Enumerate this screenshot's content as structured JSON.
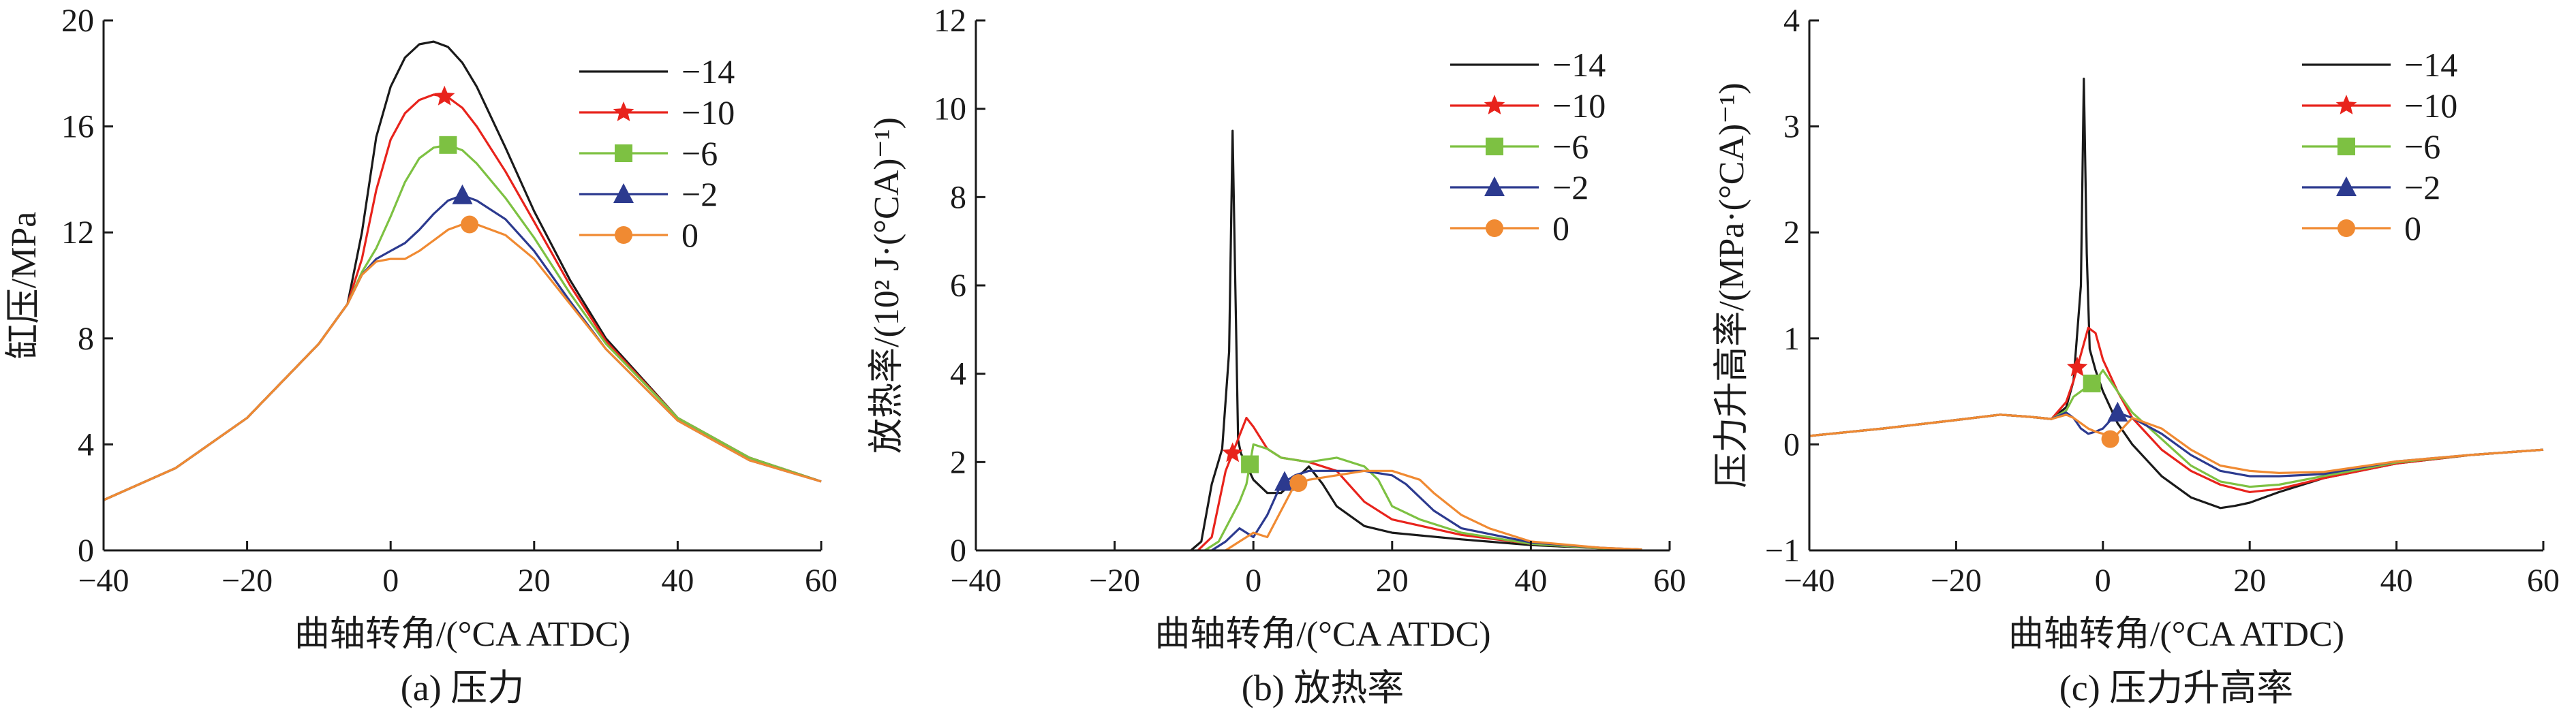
{
  "chart_data": [
    {
      "type": "line",
      "caption": "(a) 压力",
      "xlabel": "曲轴转角/(°CA ATDC)",
      "ylabel": "缸压/MPa",
      "xlim": [
        -40,
        60
      ],
      "ylim": [
        0,
        20
      ],
      "xticks": [
        -40,
        -20,
        0,
        20,
        40,
        60
      ],
      "yticks": [
        0,
        4,
        8,
        12,
        16,
        20
      ],
      "legend_position": "top-right",
      "series": [
        {
          "name": "−14",
          "color": "#1a1a1a",
          "marker": "none",
          "marker_x": null,
          "x": [
            -40,
            -30,
            -20,
            -10,
            -6,
            -4,
            -2,
            0,
            2,
            4,
            6,
            8,
            10,
            12,
            16,
            20,
            25,
            30,
            40,
            50,
            60
          ],
          "y": [
            1.9,
            3.1,
            5.0,
            7.8,
            9.3,
            12.0,
            15.6,
            17.5,
            18.6,
            19.1,
            19.2,
            19.0,
            18.4,
            17.5,
            15.2,
            12.8,
            10.2,
            8.0,
            5.0,
            3.5,
            2.6
          ]
        },
        {
          "name": "−10",
          "color": "#e8231c",
          "marker": "star",
          "marker_x": 7.5,
          "x": [
            -40,
            -30,
            -20,
            -10,
            -6,
            -4,
            -2,
            0,
            2,
            4,
            6,
            8,
            10,
            12,
            16,
            20,
            25,
            30,
            40,
            50,
            60
          ],
          "y": [
            1.9,
            3.1,
            5.0,
            7.8,
            9.3,
            11.0,
            13.6,
            15.5,
            16.5,
            17.0,
            17.2,
            17.1,
            16.7,
            16.0,
            14.3,
            12.4,
            10.0,
            7.9,
            5.0,
            3.5,
            2.6
          ]
        },
        {
          "name": "−6",
          "color": "#7dc142",
          "marker": "square",
          "marker_x": 8,
          "x": [
            -40,
            -30,
            -20,
            -10,
            -6,
            -4,
            -2,
            0,
            2,
            4,
            6,
            8,
            10,
            12,
            16,
            20,
            25,
            30,
            40,
            50,
            60
          ],
          "y": [
            1.9,
            3.1,
            5.0,
            7.8,
            9.3,
            10.5,
            11.4,
            12.6,
            13.9,
            14.8,
            15.2,
            15.3,
            15.1,
            14.6,
            13.3,
            11.8,
            9.7,
            7.8,
            5.0,
            3.5,
            2.6
          ]
        },
        {
          "name": "−2",
          "color": "#2c3a8f",
          "marker": "triangle",
          "marker_x": 10,
          "x": [
            -40,
            -30,
            -20,
            -10,
            -6,
            -4,
            -2,
            0,
            2,
            4,
            6,
            8,
            10,
            12,
            16,
            20,
            25,
            30,
            40,
            50,
            60
          ],
          "y": [
            1.9,
            3.1,
            5.0,
            7.8,
            9.3,
            10.4,
            11.0,
            11.3,
            11.6,
            12.1,
            12.7,
            13.2,
            13.4,
            13.2,
            12.5,
            11.3,
            9.4,
            7.6,
            4.9,
            3.4,
            2.6
          ]
        },
        {
          "name": "0",
          "color": "#f08a32",
          "marker": "circle",
          "marker_x": 11,
          "x": [
            -40,
            -30,
            -20,
            -10,
            -6,
            -4,
            -2,
            0,
            2,
            4,
            6,
            8,
            10,
            12,
            16,
            20,
            25,
            30,
            40,
            50,
            60
          ],
          "y": [
            1.9,
            3.1,
            5.0,
            7.8,
            9.3,
            10.4,
            10.9,
            11.0,
            11.0,
            11.3,
            11.7,
            12.1,
            12.3,
            12.3,
            11.9,
            11.0,
            9.3,
            7.6,
            4.9,
            3.4,
            2.6
          ]
        }
      ]
    },
    {
      "type": "line",
      "caption": "(b) 放热率",
      "xlabel": "曲轴转角/(°CA ATDC)",
      "ylabel": "放热率/(10² J·(°CA)⁻¹)",
      "xlim": [
        -40,
        60
      ],
      "ylim": [
        0,
        12
      ],
      "xticks": [
        -40,
        -20,
        0,
        20,
        40,
        60
      ],
      "yticks": [
        0,
        2,
        4,
        6,
        8,
        10,
        12
      ],
      "legend_position": "top-right",
      "series": [
        {
          "name": "−14",
          "color": "#1a1a1a",
          "marker": "none",
          "marker_x": null,
          "x": [
            -9,
            -7.5,
            -6,
            -4.5,
            -3.5,
            -3,
            -2.6,
            -2.2,
            -1.8,
            -1.2,
            0,
            2,
            4,
            6,
            8,
            10,
            12,
            16,
            20,
            30,
            40,
            50,
            56
          ],
          "y": [
            0,
            0.2,
            1.5,
            2.3,
            4.5,
            9.5,
            6.0,
            2.5,
            2.2,
            2.0,
            1.6,
            1.3,
            1.3,
            1.6,
            1.9,
            1.5,
            1.0,
            0.55,
            0.4,
            0.25,
            0.12,
            0.05,
            0.02
          ]
        },
        {
          "name": "−10",
          "color": "#e8231c",
          "marker": "star",
          "marker_x": -3,
          "x": [
            -8,
            -6,
            -4,
            -3,
            -2,
            -1,
            0,
            2,
            4,
            8,
            12,
            16,
            20,
            30,
            40,
            50,
            56
          ],
          "y": [
            0,
            0.3,
            1.8,
            2.2,
            2.6,
            3.0,
            2.8,
            2.3,
            2.1,
            2.0,
            1.8,
            1.1,
            0.7,
            0.35,
            0.15,
            0.05,
            0.02
          ]
        },
        {
          "name": "−6",
          "color": "#7dc142",
          "marker": "square",
          "marker_x": -0.5,
          "x": [
            -7,
            -5,
            -3,
            -2,
            -1,
            0,
            2,
            4,
            8,
            12,
            16,
            18,
            20,
            24,
            30,
            40,
            50,
            56
          ],
          "y": [
            0,
            0.2,
            0.8,
            1.1,
            1.5,
            2.4,
            2.3,
            2.1,
            2.0,
            2.1,
            1.9,
            1.6,
            1.0,
            0.7,
            0.4,
            0.15,
            0.05,
            0.02
          ]
        },
        {
          "name": "−2",
          "color": "#2c3a8f",
          "marker": "triangle",
          "marker_x": 4.5,
          "x": [
            -6,
            -4,
            -2,
            0,
            2,
            4,
            6,
            8,
            12,
            16,
            20,
            22,
            26,
            30,
            40,
            50,
            56
          ],
          "y": [
            0,
            0.2,
            0.5,
            0.3,
            0.8,
            1.5,
            1.7,
            1.8,
            1.8,
            1.8,
            1.7,
            1.5,
            0.9,
            0.5,
            0.18,
            0.06,
            0.02
          ]
        },
        {
          "name": "0",
          "color": "#f08a32",
          "marker": "circle",
          "marker_x": 6.5,
          "x": [
            -4,
            -2,
            0,
            2,
            4,
            6,
            8,
            12,
            16,
            20,
            24,
            26,
            30,
            34,
            40,
            50,
            56
          ],
          "y": [
            0,
            0.2,
            0.4,
            0.3,
            0.9,
            1.5,
            1.6,
            1.7,
            1.8,
            1.8,
            1.6,
            1.3,
            0.8,
            0.5,
            0.2,
            0.06,
            0.02
          ]
        }
      ]
    },
    {
      "type": "line",
      "caption": "(c) 压力升高率",
      "xlabel": "曲轴转角/(°CA ATDC)",
      "ylabel": "压力升高率/(MPa·(°CA)⁻¹)",
      "xlim": [
        -40,
        60
      ],
      "ylim": [
        -1,
        4
      ],
      "xticks": [
        -40,
        -20,
        0,
        20,
        40,
        60
      ],
      "yticks": [
        -1,
        0,
        1,
        2,
        3,
        4
      ],
      "legend_position": "top-right",
      "series": [
        {
          "name": "−14",
          "color": "#1a1a1a",
          "marker": "none",
          "marker_x": null,
          "x": [
            -40,
            -30,
            -20,
            -14,
            -10,
            -7,
            -5,
            -4,
            -3,
            -2.6,
            -2.2,
            -1.8,
            -1,
            0,
            2,
            4,
            8,
            12,
            16,
            18,
            20,
            24,
            30,
            40,
            50,
            60
          ],
          "y": [
            0.08,
            0.15,
            0.23,
            0.28,
            0.26,
            0.24,
            0.35,
            0.6,
            1.5,
            3.45,
            1.8,
            0.9,
            0.7,
            0.5,
            0.2,
            0.0,
            -0.3,
            -0.5,
            -0.6,
            -0.58,
            -0.55,
            -0.45,
            -0.32,
            -0.18,
            -0.1,
            -0.05
          ]
        },
        {
          "name": "−10",
          "color": "#e8231c",
          "marker": "star",
          "marker_x": -3.5,
          "x": [
            -40,
            -30,
            -20,
            -14,
            -10,
            -7,
            -5,
            -4,
            -3,
            -2,
            -1,
            0,
            2,
            4,
            8,
            12,
            16,
            20,
            24,
            30,
            40,
            50,
            60
          ],
          "y": [
            0.08,
            0.15,
            0.23,
            0.28,
            0.26,
            0.24,
            0.4,
            0.6,
            0.85,
            1.1,
            1.05,
            0.8,
            0.5,
            0.25,
            -0.05,
            -0.25,
            -0.38,
            -0.45,
            -0.42,
            -0.32,
            -0.18,
            -0.1,
            -0.05
          ]
        },
        {
          "name": "−6",
          "color": "#7dc142",
          "marker": "square",
          "marker_x": -1.5,
          "x": [
            -40,
            -30,
            -20,
            -14,
            -10,
            -7,
            -5,
            -4,
            -3,
            -2,
            -1,
            0,
            2,
            4,
            8,
            12,
            16,
            20,
            24,
            30,
            40,
            50,
            60
          ],
          "y": [
            0.08,
            0.15,
            0.23,
            0.28,
            0.26,
            0.24,
            0.32,
            0.45,
            0.5,
            0.55,
            0.6,
            0.7,
            0.5,
            0.3,
            0.05,
            -0.2,
            -0.35,
            -0.4,
            -0.38,
            -0.3,
            -0.17,
            -0.1,
            -0.05
          ]
        },
        {
          "name": "−2",
          "color": "#2c3a8f",
          "marker": "triangle",
          "marker_x": 2,
          "x": [
            -40,
            -30,
            -20,
            -14,
            -10,
            -7,
            -5,
            -4,
            -3,
            -2,
            -1,
            0,
            2,
            4,
            8,
            12,
            16,
            20,
            24,
            30,
            40,
            50,
            60
          ],
          "y": [
            0.08,
            0.15,
            0.23,
            0.28,
            0.26,
            0.24,
            0.3,
            0.25,
            0.15,
            0.1,
            0.12,
            0.15,
            0.3,
            0.25,
            0.1,
            -0.1,
            -0.25,
            -0.3,
            -0.3,
            -0.28,
            -0.16,
            -0.1,
            -0.05
          ]
        },
        {
          "name": "0",
          "color": "#f08a32",
          "marker": "circle",
          "marker_x": 1,
          "x": [
            -40,
            -30,
            -20,
            -14,
            -10,
            -7,
            -5,
            -4,
            -3,
            -2,
            -1,
            0,
            1,
            2,
            4,
            8,
            12,
            16,
            20,
            24,
            30,
            40,
            50,
            60
          ],
          "y": [
            0.08,
            0.15,
            0.23,
            0.28,
            0.26,
            0.24,
            0.28,
            0.25,
            0.2,
            0.15,
            0.12,
            0.1,
            0.05,
            0.1,
            0.25,
            0.15,
            -0.05,
            -0.2,
            -0.25,
            -0.27,
            -0.26,
            -0.16,
            -0.1,
            -0.05
          ]
        }
      ]
    }
  ]
}
